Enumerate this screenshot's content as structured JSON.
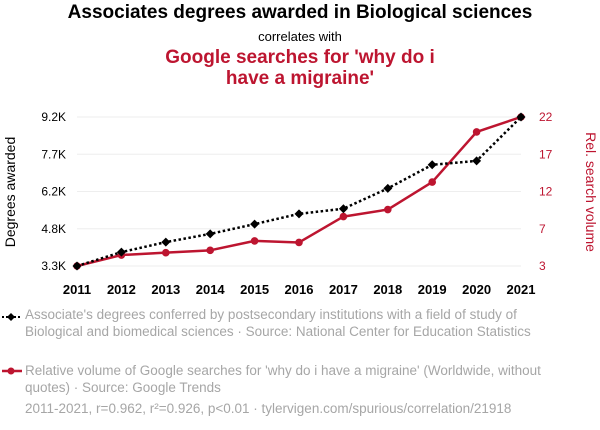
{
  "title": "Associates degrees awarded in Biological sciences",
  "subtitle": "correlates with",
  "series2_title": "Google searches for 'why do i have a migraine'",
  "colors": {
    "series1": "#000000",
    "series2": "#bd1530",
    "legend_text": "#a6a6a6",
    "grid": "#eeeeee"
  },
  "chart_data": {
    "type": "line",
    "x": [
      2011,
      2012,
      2013,
      2014,
      2015,
      2016,
      2017,
      2018,
      2019,
      2020,
      2021
    ],
    "xticks": [
      "2011",
      "2012",
      "2013",
      "2014",
      "2015",
      "2016",
      "2017",
      "2018",
      "2019",
      "2020",
      "2021"
    ],
    "y_left": {
      "label": "Degrees awarded",
      "ticks": [
        "3.3K",
        "4.8K",
        "6.2K",
        "7.7K",
        "9.2K"
      ],
      "tick_values": [
        3300,
        4750,
        6200,
        7650,
        9100
      ],
      "range": [
        3300,
        9100
      ]
    },
    "y_right": {
      "label": "Rel. search volume",
      "ticks": [
        "3",
        "7",
        "12",
        "17",
        "22"
      ],
      "tick_values": [
        3,
        7.75,
        12.5,
        17.25,
        22
      ],
      "range": [
        3,
        22
      ]
    },
    "series": [
      {
        "name": "Associate's degrees conferred by postsecondary institutions with a field of study of Biological and biomedical sciences",
        "axis": "left",
        "style": "dotted",
        "marker": "diamond",
        "values": [
          3300,
          3840,
          4230,
          4550,
          4930,
          5330,
          5530,
          6320,
          7240,
          7390,
          9100
        ]
      },
      {
        "name": "Relative volume of Google searches for 'why do i have a migraine'",
        "axis": "right",
        "style": "solid",
        "marker": "circle",
        "values": [
          3,
          4.4,
          4.7,
          5,
          6.2,
          6,
          9.3,
          10.2,
          13.7,
          20.1,
          22
        ]
      }
    ]
  },
  "legend": {
    "item1": "Associate's degrees conferred by postsecondary institutions with a field of study of Biological and biomedical sciences · Source: National Center for Education Statistics",
    "item2": "Relative volume of Google searches for 'why do i have a migraine' (Worldwide, without quotes) · Source: Google Trends"
  },
  "footer": "2011-2021, r=0.962, r²=0.926, p<0.01 · tylervigen.com/spurious/correlation/21918"
}
